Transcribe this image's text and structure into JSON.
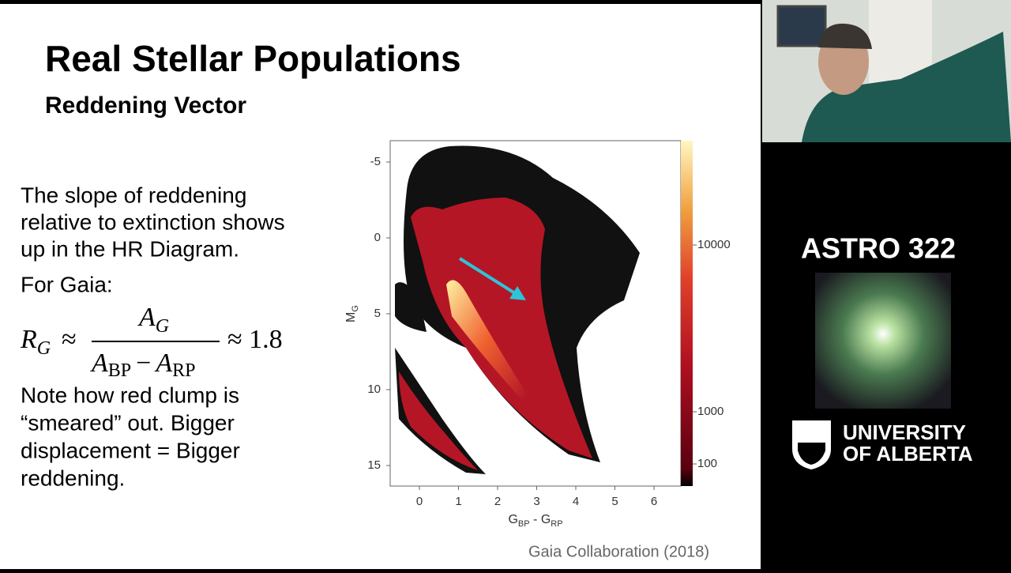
{
  "slide": {
    "title": "Real Stellar Populations",
    "subtitle": "Reddening Vector",
    "intro_lines": [
      "The slope of reddening",
      "relative to extinction shows",
      "up in the HR Diagram."
    ],
    "lead": "For Gaia:",
    "equation": {
      "lhs": "R",
      "lhs_sub": "G",
      "approx": "≈",
      "num": "A",
      "num_sub": "G",
      "den_a": "A",
      "den_a_sub": "BP",
      "minus": "−",
      "den_b": "A",
      "den_b_sub": "RP",
      "result": "≈ 1.8"
    },
    "note_lines": [
      "Note how red clump is",
      "“smeared” out.  Bigger",
      "displacement = Bigger",
      "reddening."
    ],
    "figure": {
      "yticks": [
        "-5",
        "0",
        "5",
        "10",
        "15"
      ],
      "xticks": [
        "0",
        "1",
        "2",
        "3",
        "4",
        "5",
        "6"
      ],
      "colorbar_ticks": [
        "10000",
        "1000",
        "100"
      ],
      "ylabel": "M",
      "ylabel_sub": "G",
      "xlabel_a": "G",
      "xlabel_a_sub": "BP",
      "xlabel_mid": " - ",
      "xlabel_b": "G",
      "xlabel_b_sub": "RP"
    },
    "credit": "Gaia Collaboration (2018)"
  },
  "sidebar": {
    "course": "ASTRO 322",
    "university_lines": [
      "UNIVERSITY",
      "OF ALBERTA"
    ]
  }
}
